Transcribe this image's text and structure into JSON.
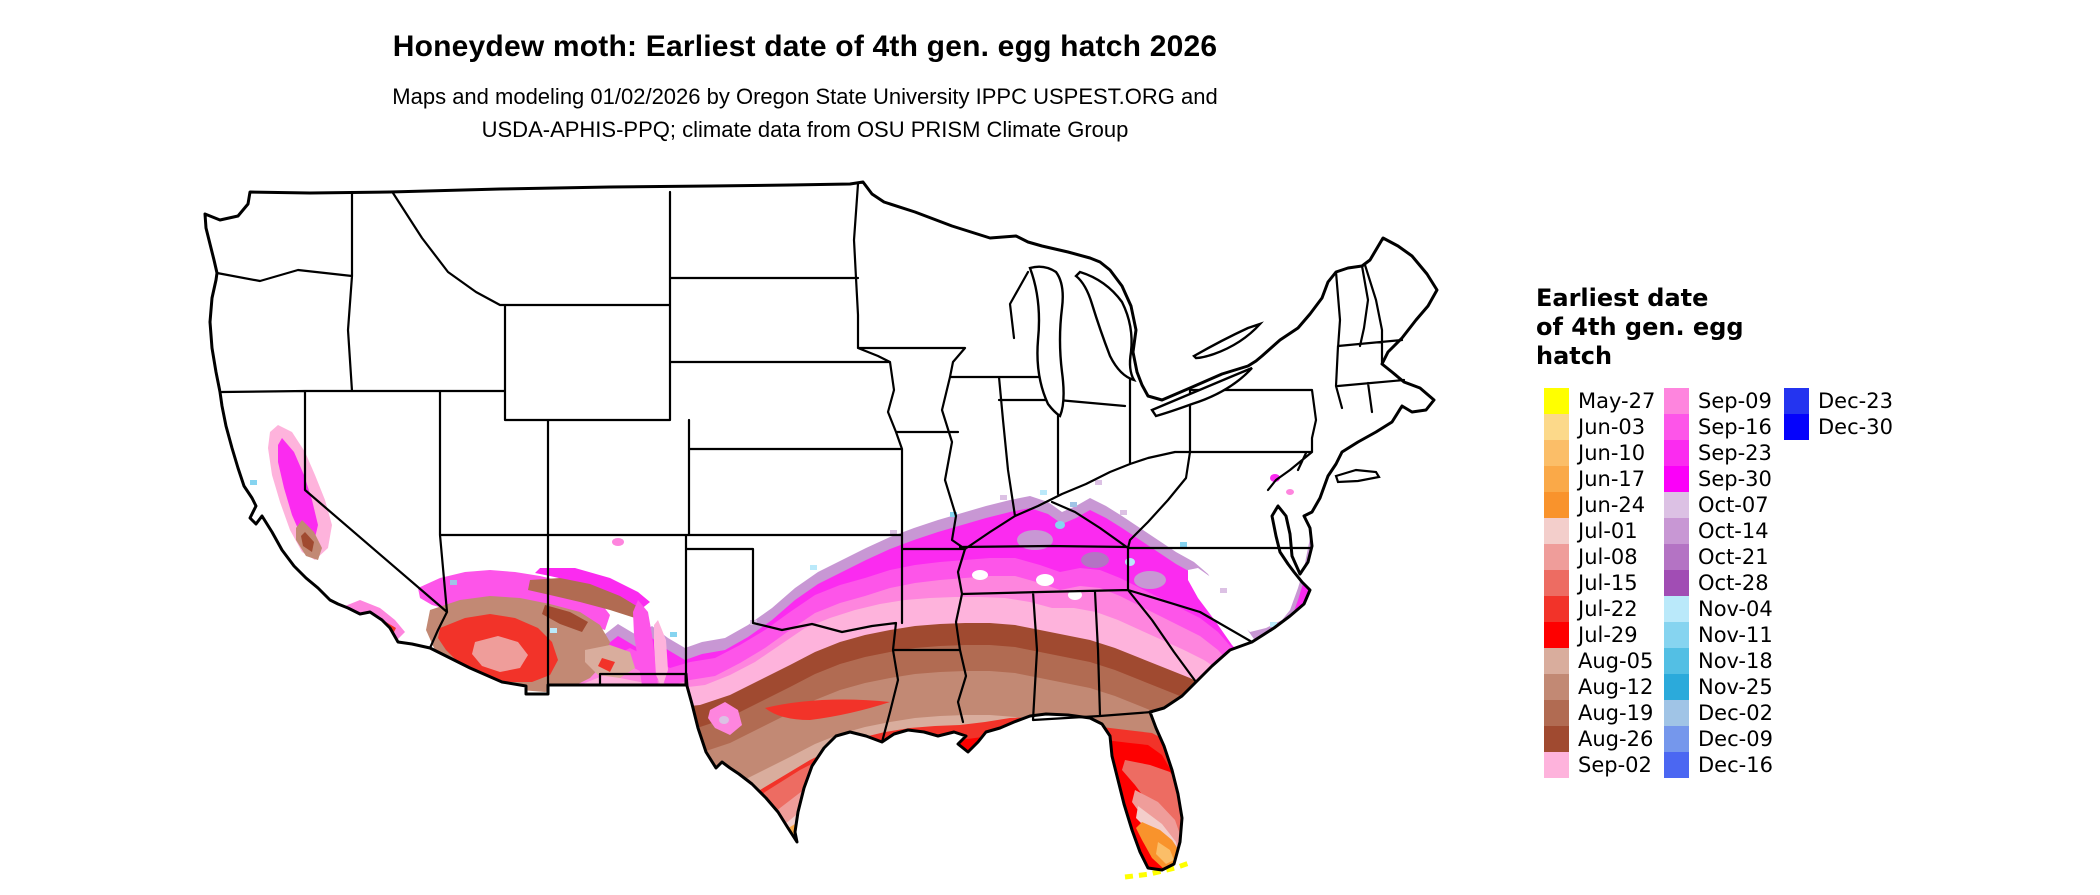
{
  "header": {
    "title": "Honeydew moth: Earliest date of 4th gen. egg hatch 2026",
    "subtitle_line1": "Maps and modeling 01/02/2026 by Oregon State University IPPC USPEST.ORG and",
    "subtitle_line2": "USDA-APHIS-PPQ; climate data from OSU PRISM Climate Group"
  },
  "map": {
    "region": "Contiguous United States",
    "border_color": "#000000",
    "no_data_color": "#FFFFFF",
    "observed_pattern": "Northern states are white (no 4th generation egg hatch date). Dates become earlier toward the south: October/September magenta and lavender bands across the mid-South and southern Plains, August browns across Texas and the Deep South, July reds along the Gulf Coast and desert Southwest, June oranges in southern Texas and southern Florida, and May-27 yellow in the Florida Keys. Colored corridors also appear in California's Central Valley and central Arizona."
  },
  "legend": {
    "title_lines": [
      "Earliest date",
      "of 4th gen. egg",
      "hatch"
    ],
    "columns": [
      [
        {
          "label": "May-27",
          "color": "#FFFF00"
        },
        {
          "label": "Jun-03",
          "color": "#FCD98A"
        },
        {
          "label": "Jun-10",
          "color": "#FBBE68"
        },
        {
          "label": "Jun-17",
          "color": "#FAA948"
        },
        {
          "label": "Jun-24",
          "color": "#F9932C"
        },
        {
          "label": "Jul-01",
          "color": "#F3CECB"
        },
        {
          "label": "Jul-08",
          "color": "#EF9D9A"
        },
        {
          "label": "Jul-15",
          "color": "#ED6C62"
        },
        {
          "label": "Jul-22",
          "color": "#F23329"
        },
        {
          "label": "Jul-29",
          "color": "#FE0000"
        },
        {
          "label": "Aug-05",
          "color": "#D9AD9D"
        },
        {
          "label": "Aug-12",
          "color": "#C28974"
        },
        {
          "label": "Aug-19",
          "color": "#B16B52"
        },
        {
          "label": "Aug-26",
          "color": "#A04A30"
        },
        {
          "label": "Sep-02",
          "color": "#FEB3DC"
        }
      ],
      [
        {
          "label": "Sep-09",
          "color": "#FE85DE"
        },
        {
          "label": "Sep-16",
          "color": "#FD55E9"
        },
        {
          "label": "Sep-23",
          "color": "#FB2BF0"
        },
        {
          "label": "Sep-30",
          "color": "#FB00F9"
        },
        {
          "label": "Oct-07",
          "color": "#DCC1E4"
        },
        {
          "label": "Oct-14",
          "color": "#C897D4"
        },
        {
          "label": "Oct-21",
          "color": "#B473C4"
        },
        {
          "label": "Oct-28",
          "color": "#A14DB4"
        },
        {
          "label": "Nov-04",
          "color": "#BAE9FA"
        },
        {
          "label": "Nov-11",
          "color": "#86D4F0"
        },
        {
          "label": "Nov-18",
          "color": "#53BFE4"
        },
        {
          "label": "Nov-25",
          "color": "#2BAADB"
        },
        {
          "label": "Dec-02",
          "color": "#A0C4E6"
        },
        {
          "label": "Dec-09",
          "color": "#7597EC"
        },
        {
          "label": "Dec-16",
          "color": "#4B67F2"
        }
      ],
      [
        {
          "label": "Dec-23",
          "color": "#2434F0"
        },
        {
          "label": "Dec-30",
          "color": "#0503FC"
        }
      ]
    ]
  }
}
